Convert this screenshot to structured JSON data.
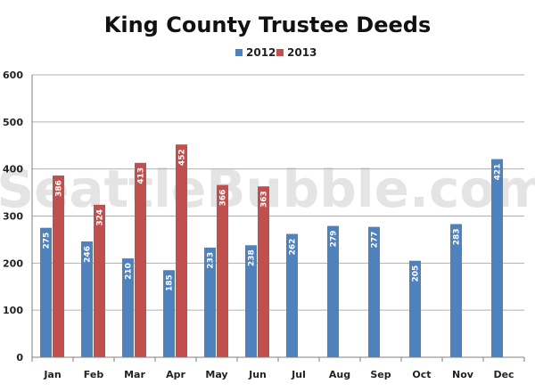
{
  "watermark": "SeattleBubble.com",
  "colors": {
    "series_2012": "#4f81bd",
    "series_2013": "#c0504d",
    "gridline": "#b0b0b0",
    "axis": "#7f7f7f"
  },
  "chart_data": {
    "type": "bar",
    "title": "King County Trustee Deeds",
    "categories": [
      "Jan",
      "Feb",
      "Mar",
      "Apr",
      "May",
      "Jun",
      "Jul",
      "Aug",
      "Sep",
      "Oct",
      "Nov",
      "Dec"
    ],
    "series": [
      {
        "name": "2012",
        "values": [
          275,
          246,
          210,
          185,
          233,
          238,
          262,
          279,
          277,
          205,
          283,
          421
        ]
      },
      {
        "name": "2013",
        "values": [
          386,
          324,
          413,
          452,
          366,
          363,
          null,
          null,
          null,
          null,
          null,
          null
        ]
      }
    ],
    "ylim": [
      0,
      600
    ],
    "yticks": [
      0,
      100,
      200,
      300,
      400,
      500,
      600
    ],
    "grid": true,
    "legend": "top-center",
    "data_labels": true
  }
}
